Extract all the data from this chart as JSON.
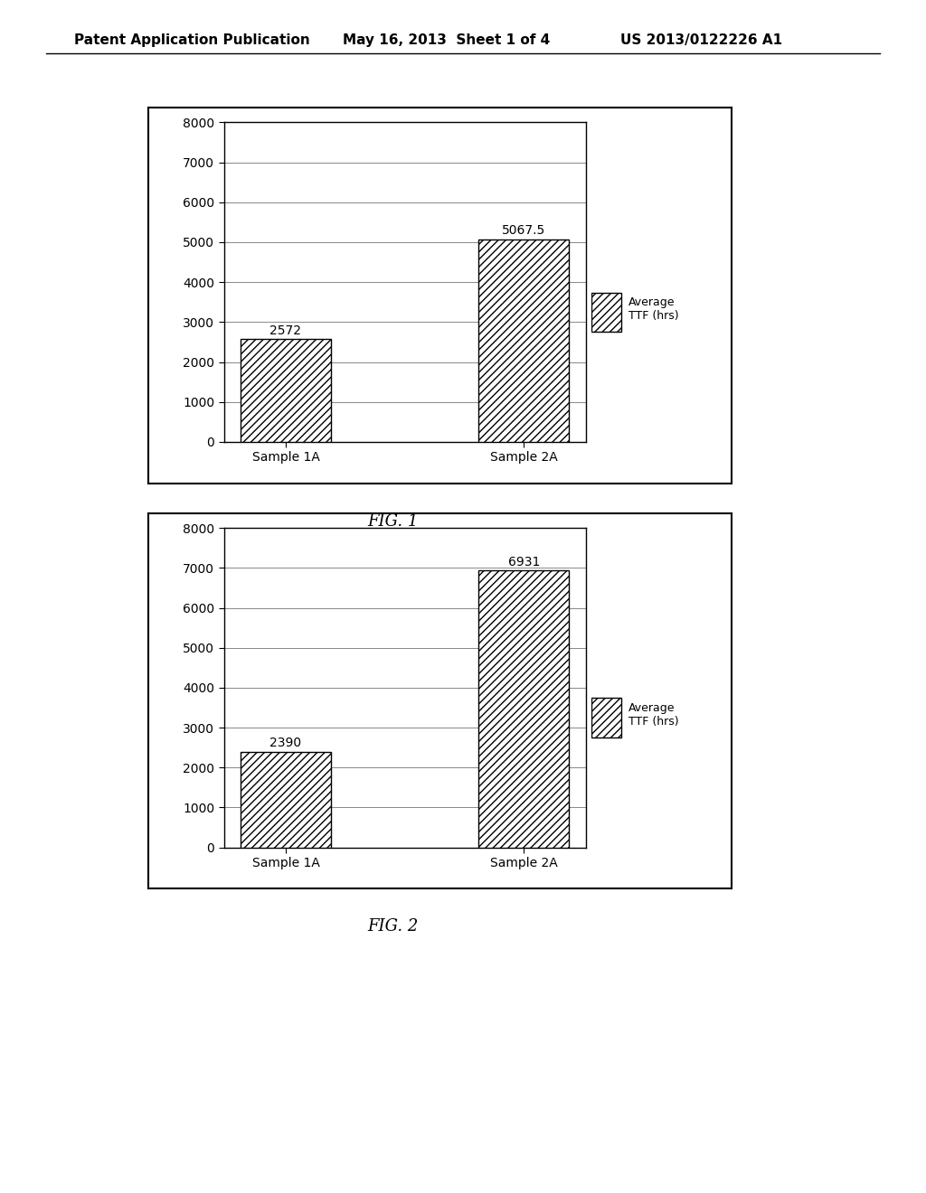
{
  "fig1": {
    "categories": [
      "Sample 1A",
      "Sample 2A"
    ],
    "values": [
      2572,
      5067.5
    ],
    "labels": [
      "2572",
      "5067.5"
    ],
    "ylim": [
      0,
      8000
    ],
    "yticks": [
      0,
      1000,
      2000,
      3000,
      4000,
      5000,
      6000,
      7000,
      8000
    ],
    "legend_label": "Average\nTTF (hrs)",
    "figure_label": "FIG. 1"
  },
  "fig2": {
    "categories": [
      "Sample 1A",
      "Sample 2A"
    ],
    "values": [
      2390,
      6931
    ],
    "labels": [
      "2390",
      "6931"
    ],
    "ylim": [
      0,
      8000
    ],
    "yticks": [
      0,
      1000,
      2000,
      3000,
      4000,
      5000,
      6000,
      7000,
      8000
    ],
    "legend_label": "Average\nTTF (hrs)",
    "figure_label": "FIG. 2"
  },
  "header_left": "Patent Application Publication",
  "header_mid": "May 16, 2013  Sheet 1 of 4",
  "header_right": "US 2013/0122226 A1",
  "bg_color": "#ffffff",
  "bar_color": "#ffffff",
  "hatch_pattern": "////",
  "bar_edge_color": "#000000",
  "grid_color": "#888888",
  "tick_font_size": 10,
  "label_font_size": 10,
  "fig_label_font_size": 13,
  "header_font_size": 11
}
